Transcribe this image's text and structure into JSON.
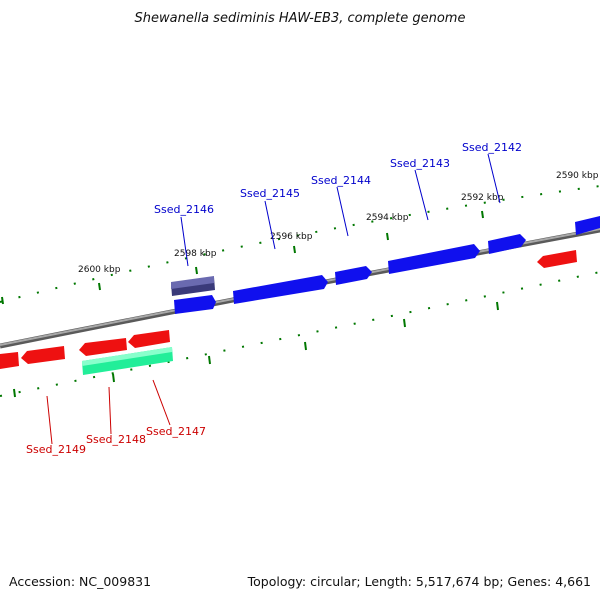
{
  "title": "Shewanella sediminis HAW-EB3, complete genome",
  "footer": {
    "accession": "Accession: NC_009831",
    "summary": "Topology: circular; Length: 5,517,674 bp; Genes: 4,661"
  },
  "ticks": [
    {
      "label": "2600 kbp"
    },
    {
      "label": "2598 kbp"
    },
    {
      "label": "2596 kbp"
    },
    {
      "label": "2594 kbp"
    },
    {
      "label": "2592 kbp"
    },
    {
      "label": "2590 kbp"
    }
  ],
  "genes_forward": [
    {
      "label": "Ssed_2146"
    },
    {
      "label": "Ssed_2145"
    },
    {
      "label": "Ssed_2144"
    },
    {
      "label": "Ssed_2143"
    },
    {
      "label": "Ssed_2142"
    }
  ],
  "genes_reverse": [
    {
      "label": "Ssed_2149"
    },
    {
      "label": "Ssed_2148"
    },
    {
      "label": "Ssed_2147"
    }
  ],
  "colors": {
    "forward_gene": "#1010ee",
    "highlight_gene": "#4a4a8a",
    "reverse_gene": "#ee1111",
    "rna_gene": "#22ee99",
    "backbone": "#808080",
    "ticks": "#007700"
  }
}
